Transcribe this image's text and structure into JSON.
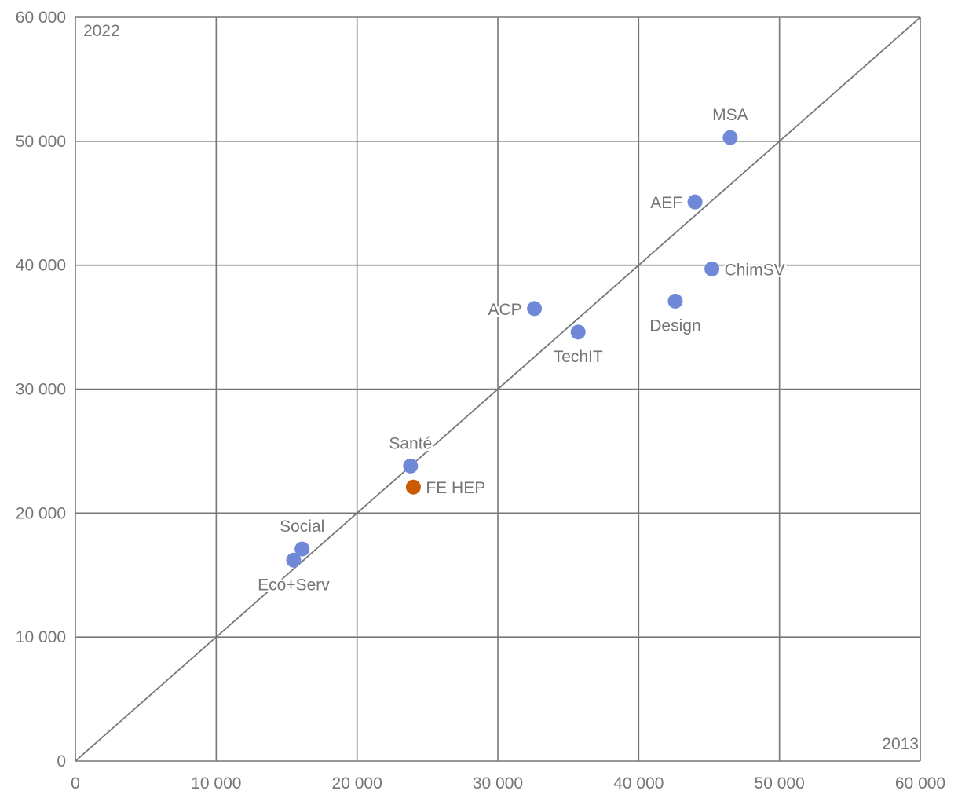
{
  "chart_data": {
    "type": "scatter",
    "xlabel": "2013",
    "ylabel": "2022",
    "xlim": [
      0,
      60000
    ],
    "ylim": [
      0,
      60000
    ],
    "x_ticks": [
      {
        "value": 0,
        "label": "0"
      },
      {
        "value": 10000,
        "label": "10 000"
      },
      {
        "value": 20000,
        "label": "20 000"
      },
      {
        "value": 30000,
        "label": "30 000"
      },
      {
        "value": 40000,
        "label": "40 000"
      },
      {
        "value": 50000,
        "label": "50 000"
      },
      {
        "value": 60000,
        "label": "60 000"
      }
    ],
    "y_ticks": [
      {
        "value": 0,
        "label": "0"
      },
      {
        "value": 10000,
        "label": "10 000"
      },
      {
        "value": 20000,
        "label": "20 000"
      },
      {
        "value": 30000,
        "label": "30 000"
      },
      {
        "value": 40000,
        "label": "40 000"
      },
      {
        "value": 50000,
        "label": "50 000"
      },
      {
        "value": 60000,
        "label": "60 000"
      }
    ],
    "grid": true,
    "reference_line": "y = x",
    "colors": {
      "default_point": "#7088d8",
      "highlight_point": "#cc5a00",
      "grid": "#777777",
      "text": "#757575",
      "reference_line": "#777777"
    },
    "points": [
      {
        "label": "MSA",
        "x": 46500,
        "y": 50300,
        "label_pos": "above",
        "highlight": false
      },
      {
        "label": "AEF",
        "x": 44000,
        "y": 45100,
        "label_pos": "left",
        "highlight": false
      },
      {
        "label": "ChimSV",
        "x": 45200,
        "y": 39700,
        "label_pos": "right",
        "highlight": false
      },
      {
        "label": "Design",
        "x": 42600,
        "y": 37100,
        "label_pos": "below",
        "highlight": false
      },
      {
        "label": "ACP",
        "x": 32600,
        "y": 36500,
        "label_pos": "left",
        "highlight": false
      },
      {
        "label": "TechIT",
        "x": 35700,
        "y": 34600,
        "label_pos": "below",
        "highlight": false
      },
      {
        "label": "Santé",
        "x": 23800,
        "y": 23800,
        "label_pos": "above",
        "highlight": false
      },
      {
        "label": "FE HEP",
        "x": 24000,
        "y": 22100,
        "label_pos": "right",
        "highlight": true
      },
      {
        "label": "Social",
        "x": 16100,
        "y": 17100,
        "label_pos": "above",
        "highlight": false
      },
      {
        "label": "Eco+Serv",
        "x": 15500,
        "y": 16200,
        "label_pos": "below",
        "highlight": false
      }
    ]
  }
}
